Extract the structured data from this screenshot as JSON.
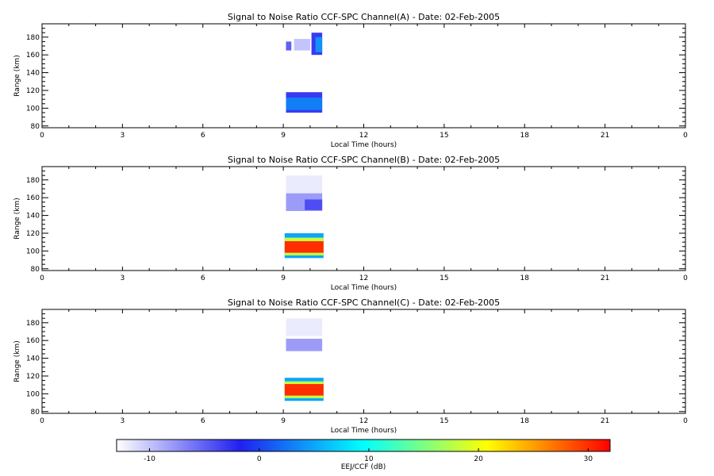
{
  "chart_data": [
    {
      "type": "heatmap",
      "title": "Signal to Noise Ratio CCF-SPC Channel(A) - Date: 02-Feb-2005",
      "xlabel": "Local Time (hours)",
      "ylabel": "Range (km)",
      "xlim": [
        0,
        24
      ],
      "ylim": [
        78,
        195
      ],
      "xticks": [
        "0",
        "3",
        "6",
        "9",
        "12",
        "15",
        "18",
        "21",
        "0"
      ],
      "yticks": [
        "80",
        "100",
        "120",
        "140",
        "160",
        "180"
      ],
      "regions": [
        {
          "t0": 9.1,
          "t1": 10.45,
          "r0": 95,
          "r1": 118,
          "level": -3
        },
        {
          "t0": 9.1,
          "t1": 10.45,
          "r0": 98,
          "r1": 112,
          "level": 3
        },
        {
          "t0": 9.1,
          "t1": 9.3,
          "r0": 165,
          "r1": 175,
          "level": -5
        },
        {
          "t0": 9.4,
          "t1": 10.0,
          "r0": 165,
          "r1": 178,
          "level": -10
        },
        {
          "t0": 10.05,
          "t1": 10.45,
          "r0": 160,
          "r1": 185,
          "level": -3
        },
        {
          "t0": 10.2,
          "t1": 10.45,
          "r0": 163,
          "r1": 180,
          "level": 4
        }
      ]
    },
    {
      "type": "heatmap",
      "title": "Signal to Noise Ratio CCF-SPC Channel(B) - Date: 02-Feb-2005",
      "xlabel": "Local Time (hours)",
      "ylabel": "Range (km)",
      "xlim": [
        0,
        24
      ],
      "ylim": [
        78,
        195
      ],
      "xticks": [
        "0",
        "3",
        "6",
        "9",
        "12",
        "15",
        "18",
        "21",
        "0"
      ],
      "yticks": [
        "80",
        "100",
        "120",
        "140",
        "160",
        "180"
      ],
      "regions": [
        {
          "t0": 9.05,
          "t1": 10.5,
          "r0": 92,
          "r1": 120,
          "level": 5
        },
        {
          "t0": 9.05,
          "t1": 10.5,
          "r0": 95,
          "r1": 115,
          "level": 18
        },
        {
          "t0": 9.05,
          "t1": 10.5,
          "r0": 98,
          "r1": 111,
          "level": 30
        },
        {
          "t0": 9.1,
          "t1": 10.45,
          "r0": 145,
          "r1": 165,
          "level": -8
        },
        {
          "t0": 9.8,
          "t1": 10.45,
          "r0": 146,
          "r1": 158,
          "level": -4
        },
        {
          "t0": 9.1,
          "t1": 10.45,
          "r0": 165,
          "r1": 185,
          "level": -12
        }
      ]
    },
    {
      "type": "heatmap",
      "title": "Signal to Noise Ratio CCF-SPC Channel(C) - Date: 02-Feb-2005",
      "xlabel": "Local Time (hours)",
      "ylabel": "Range (km)",
      "xlim": [
        0,
        24
      ],
      "ylim": [
        78,
        195
      ],
      "xticks": [
        "0",
        "3",
        "6",
        "9",
        "12",
        "15",
        "18",
        "21",
        "0"
      ],
      "yticks": [
        "80",
        "100",
        "120",
        "140",
        "160",
        "180"
      ],
      "regions": [
        {
          "t0": 9.05,
          "t1": 10.5,
          "r0": 92,
          "r1": 118,
          "level": 5
        },
        {
          "t0": 9.05,
          "t1": 10.5,
          "r0": 95,
          "r1": 114,
          "level": 18
        },
        {
          "t0": 9.05,
          "t1": 10.5,
          "r0": 98,
          "r1": 111,
          "level": 30
        },
        {
          "t0": 9.1,
          "t1": 10.45,
          "r0": 148,
          "r1": 162,
          "level": -8
        },
        {
          "t0": 9.1,
          "t1": 10.45,
          "r0": 165,
          "r1": 185,
          "level": -12
        }
      ]
    }
  ],
  "colorbar": {
    "label": "EEJ/CCF (dB)",
    "min": -13,
    "max": 32,
    "ticks": [
      "-10",
      "0",
      "10",
      "20",
      "30"
    ],
    "tick_values": [
      -10,
      0,
      10,
      20,
      30
    ],
    "colors": [
      "#ffffff",
      "#2020f0",
      "#00ffff",
      "#ffff00",
      "#ff0000"
    ]
  }
}
